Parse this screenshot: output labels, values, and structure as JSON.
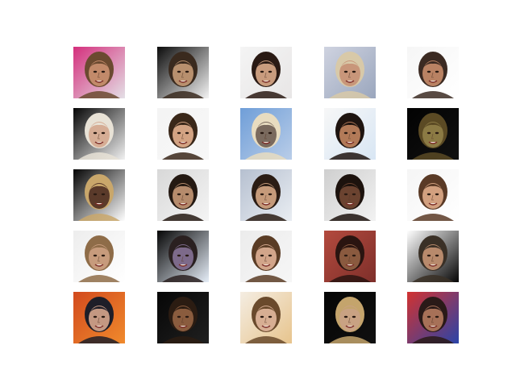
{
  "figure": {
    "background": "#ffffff",
    "rows": 5,
    "cols": 5
  },
  "samples": [
    {
      "bg": "#d42f7c",
      "bg2": "#e4e0e6",
      "skin": "#c28a6a",
      "hair": "#6b4a30"
    },
    {
      "bg": "#0b0b0b",
      "bg2": "#f4f4f4",
      "skin": "#b8906e",
      "hair": "#3a2a1e"
    },
    {
      "bg": "#f4f4f4",
      "bg2": "#e8e6e6",
      "skin": "#c99c7e",
      "hair": "#2a1a14"
    },
    {
      "bg": "#cfd3e0",
      "bg2": "#9aa6bd",
      "skin": "#c8967a",
      "hair": "#d8c9a8"
    },
    {
      "bg": "#f6f6f6",
      "bg2": "#ffffff",
      "skin": "#b98263",
      "hair": "#3b2a22"
    },
    {
      "bg": "#050505",
      "bg2": "#f2f2f2",
      "skin": "#d6ad95",
      "hair": "#e8e2d6"
    },
    {
      "bg": "#f4f4f4",
      "bg2": "#f7f7f7",
      "skin": "#d3a383",
      "hair": "#3a2719"
    },
    {
      "bg": "#6f9ed8",
      "bg2": "#b9cde8",
      "skin": "#7a6a5e",
      "hair": "#e8dcc0"
    },
    {
      "bg": "#f7f7f7",
      "bg2": "#d8e6f4",
      "skin": "#b27a58",
      "hair": "#1e1410"
    },
    {
      "bg": "#020202",
      "bg2": "#111111",
      "skin": "#8b7a44",
      "hair": "#5b4a24"
    },
    {
      "bg": "#040404",
      "bg2": "#ffffff",
      "skin": "#5a3a2a",
      "hair": "#c9a76b"
    },
    {
      "bg": "#d8d8d8",
      "bg2": "#f4f4f4",
      "skin": "#b58b6c",
      "hair": "#241912"
    },
    {
      "bg": "#b6c0d0",
      "bg2": "#e9edf2",
      "skin": "#c59a7a",
      "hair": "#2a1c14"
    },
    {
      "bg": "#cfcfcf",
      "bg2": "#f2f2f2",
      "skin": "#6b4330",
      "hair": "#1c120d"
    },
    {
      "bg": "#f5f5f5",
      "bg2": "#ffffff",
      "skin": "#d2a07f",
      "hair": "#5a3a26"
    },
    {
      "bg": "#ededed",
      "bg2": "#ffffff",
      "skin": "#c79b7c",
      "hair": "#8e6c48"
    },
    {
      "bg": "#050505",
      "bg2": "#e6eef8",
      "skin": "#7d6a8a",
      "hair": "#2a2020"
    },
    {
      "bg": "#ececec",
      "bg2": "#f6f6f6",
      "skin": "#d2a58a",
      "hair": "#5a3c25"
    },
    {
      "bg": "#b34a3e",
      "bg2": "#7e2f2a",
      "skin": "#8a5a3f",
      "hair": "#2a1410"
    },
    {
      "bg": "#ffffff",
      "bg2": "#050505",
      "skin": "#b88a6c",
      "hair": "#3a3026"
    },
    {
      "bg": "#d24a1e",
      "bg2": "#f08a2c",
      "skin": "#c49882",
      "hair": "#1e1e28"
    },
    {
      "bg": "#060606",
      "bg2": "#202020",
      "skin": "#8a5c3e",
      "hair": "#2b1c12"
    },
    {
      "bg": "#f4ede2",
      "bg2": "#e7c48d",
      "skin": "#d7ae93",
      "hair": "#6a4a2c"
    },
    {
      "bg": "#050505",
      "bg2": "#101010",
      "skin": "#c9a283",
      "hair": "#c4a46c"
    },
    {
      "bg": "#d23230",
      "bg2": "#2a44a8",
      "skin": "#a77158",
      "hair": "#2a1a18"
    }
  ]
}
